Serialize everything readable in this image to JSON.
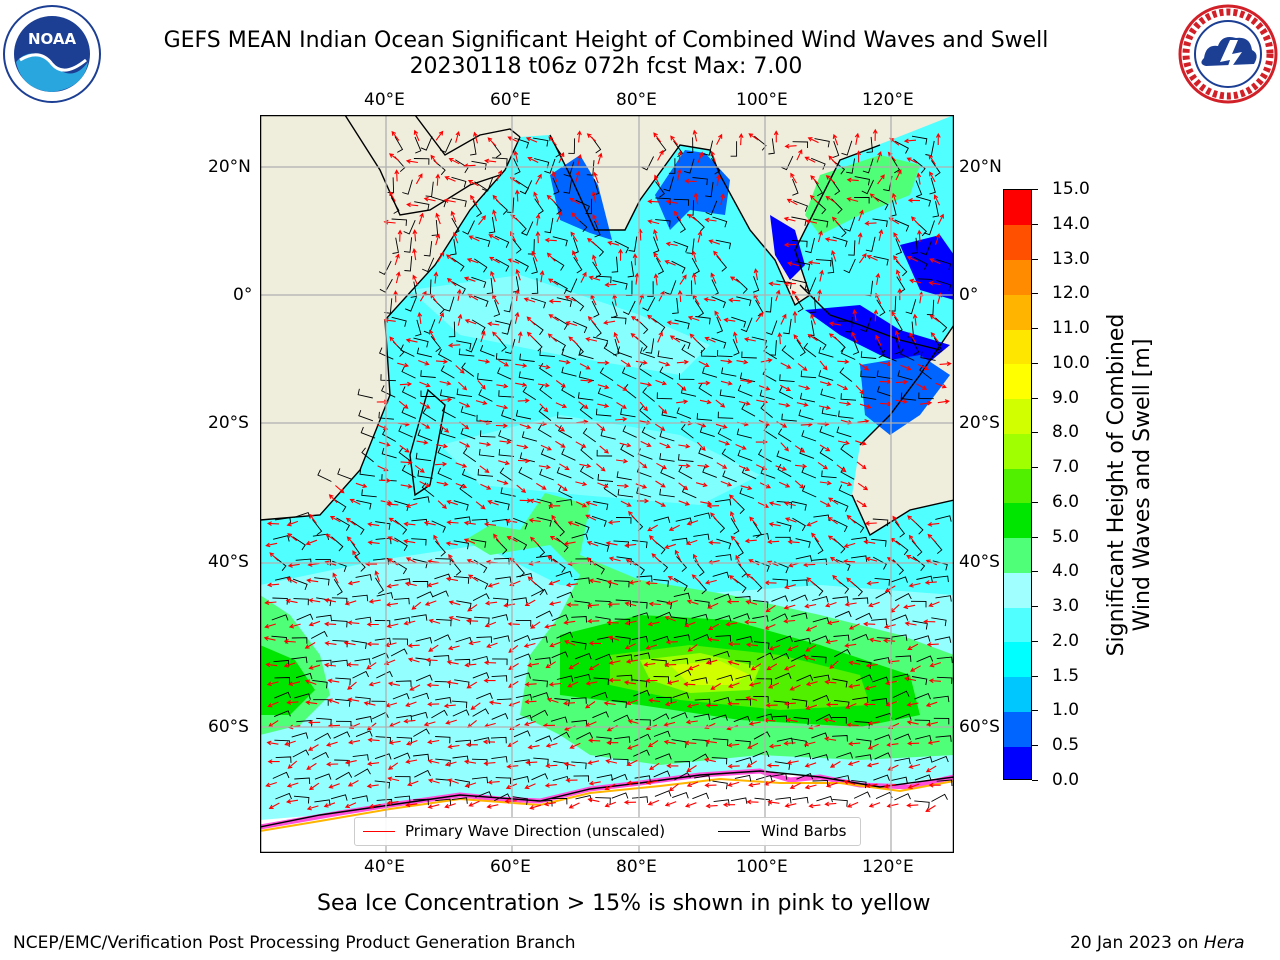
{
  "title": {
    "line1": "GEFS MEAN Indian Ocean Significant Height of Combined Wind Waves and Swell",
    "line2": "20230118 t06z 072h fcst   Max: 7.00"
  },
  "logos": {
    "left": {
      "name": "noaa-logo",
      "text": "NOAA"
    },
    "right": {
      "name": "national-weather-service-logo",
      "text": "NATIONAL WEATHER SERVICE"
    }
  },
  "map": {
    "lon_range": [
      20,
      130
    ],
    "lat_range": [
      -73,
      27
    ],
    "longitude_ticks": [
      "40°E",
      "60°E",
      "80°E",
      "100°E",
      "120°E"
    ],
    "latitude_ticks_left": [
      "20°N",
      "0°",
      "20°S",
      "40°S",
      "60°S"
    ],
    "latitude_ticks_right": [
      "20°N",
      "0°",
      "20°S",
      "40°S",
      "60°S"
    ],
    "land_color": "#efeddc",
    "max_value": "7.00"
  },
  "legend": {
    "wave_direction_label": "Primary Wave Direction (unscaled)",
    "wave_direction_color": "#ff0000",
    "wind_barbs_label": "Wind Barbs",
    "wind_barbs_color": "#000000"
  },
  "colorbar": {
    "title_line1": "Significant Height of Combined",
    "title_line2": "Wind Waves and Swell [m]",
    "labels": [
      "0.0",
      "0.5",
      "1.0",
      "1.5",
      "2.0",
      "3.0",
      "4.0",
      "5.0",
      "6.0",
      "7.0",
      "8.0",
      "9.0",
      "10.0",
      "11.0",
      "12.0",
      "13.0",
      "14.0",
      "15.0"
    ],
    "colors": [
      "#0000ff",
      "#0064ff",
      "#00c8ff",
      "#00ffff",
      "#50ffff",
      "#a0ffff",
      "#50ff78",
      "#00e600",
      "#50f000",
      "#a0ff00",
      "#d2ff00",
      "#ffff00",
      "#ffe600",
      "#ffb400",
      "#ff8c00",
      "#ff5000",
      "#ff0000"
    ]
  },
  "caption": "Sea Ice Concentration > 15% is shown in pink to yellow",
  "footer": {
    "left": "NCEP/EMC/Verification Post Processing Product Generation Branch",
    "date": "20 Jan 2023 on ",
    "machine": "Hera"
  }
}
